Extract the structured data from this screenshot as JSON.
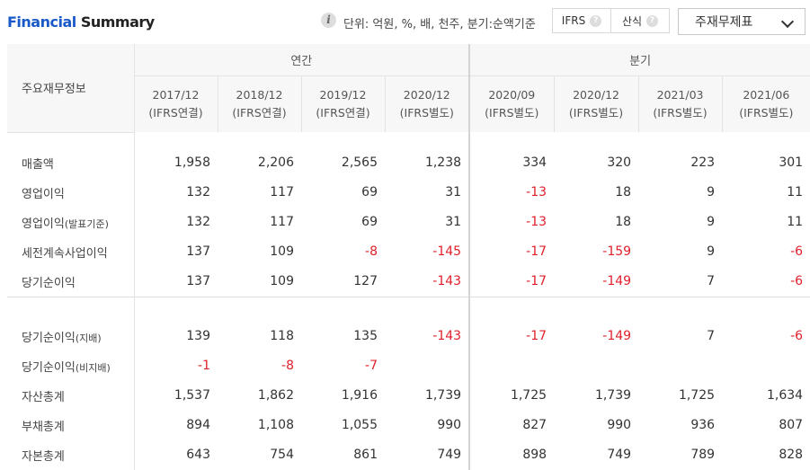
{
  "header": {
    "title_part1": "Financial",
    "title_part2": "Summary",
    "info_icon_glyph": "i",
    "unit_text": "단위: 억원, %, 배, 천주, 분기:순액기준",
    "ifrs_label": "IFRS",
    "calc_label": "산식",
    "help_glyph": "?",
    "dropdown_label": "주재무제표"
  },
  "table": {
    "label_header": "주요재무정보",
    "group_annual": "연간",
    "group_quarter": "분기",
    "periods": [
      {
        "date": "2017/12",
        "basis": "(IFRS연결)"
      },
      {
        "date": "2018/12",
        "basis": "(IFRS연결)"
      },
      {
        "date": "2019/12",
        "basis": "(IFRS연결)"
      },
      {
        "date": "2020/12",
        "basis": "(IFRS별도)"
      },
      {
        "date": "2020/09",
        "basis": "(IFRS별도)"
      },
      {
        "date": "2020/12",
        "basis": "(IFRS별도)"
      },
      {
        "date": "2021/03",
        "basis": "(IFRS별도)"
      },
      {
        "date": "2021/06",
        "basis": "(IFRS별도)"
      }
    ],
    "rows_top": [
      {
        "label": "매출액",
        "sub": "",
        "values": [
          "1,958",
          "2,206",
          "2,565",
          "1,238",
          "334",
          "320",
          "223",
          "301"
        ]
      },
      {
        "label": "영업이익",
        "sub": "",
        "values": [
          "132",
          "117",
          "69",
          "31",
          "-13",
          "18",
          "9",
          "11"
        ]
      },
      {
        "label": "영업이익",
        "sub": "(발표기준)",
        "values": [
          "132",
          "117",
          "69",
          "31",
          "-13",
          "18",
          "9",
          "11"
        ]
      },
      {
        "label": "세전계속사업이익",
        "sub": "",
        "values": [
          "137",
          "109",
          "-8",
          "-145",
          "-17",
          "-159",
          "9",
          "-6"
        ]
      },
      {
        "label": "당기순이익",
        "sub": "",
        "values": [
          "137",
          "109",
          "127",
          "-143",
          "-17",
          "-149",
          "7",
          "-6"
        ]
      }
    ],
    "rows_bottom": [
      {
        "label": "당기순이익",
        "sub": "(지배)",
        "values": [
          "139",
          "118",
          "135",
          "-143",
          "-17",
          "-149",
          "7",
          "-6"
        ]
      },
      {
        "label": "당기순이익",
        "sub": "(비지배)",
        "values": [
          "-1",
          "-8",
          "-7",
          "",
          "",
          "",
          "",
          ""
        ]
      },
      {
        "label": "자산총계",
        "sub": "",
        "values": [
          "1,537",
          "1,862",
          "1,916",
          "1,739",
          "1,725",
          "1,739",
          "1,725",
          "1,634"
        ]
      },
      {
        "label": "부채총계",
        "sub": "",
        "values": [
          "894",
          "1,108",
          "1,055",
          "990",
          "827",
          "990",
          "936",
          "807"
        ]
      },
      {
        "label": "자본총계",
        "sub": "",
        "values": [
          "643",
          "754",
          "861",
          "749",
          "898",
          "749",
          "789",
          "828"
        ]
      }
    ]
  }
}
